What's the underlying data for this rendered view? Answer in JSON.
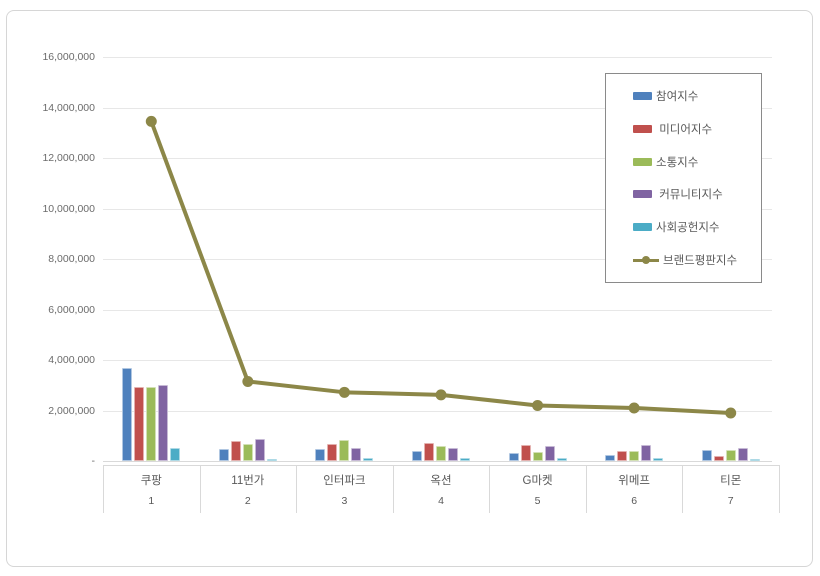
{
  "chart_data": {
    "type": "bar",
    "title": "",
    "categories": [
      "쿠팡",
      "11번가",
      "인터파크",
      "옥션",
      "G마켓",
      "위메프",
      "티몬"
    ],
    "category_numbers": [
      "1",
      "2",
      "3",
      "4",
      "5",
      "6",
      "7"
    ],
    "series": [
      {
        "name": "참여지수",
        "type": "bar",
        "color": "#4F81BD",
        "values": [
          3700000,
          460000,
          480000,
          400000,
          300000,
          250000,
          420000
        ]
      },
      {
        "name": " 미디어지수",
        "type": "bar",
        "color": "#C0504D",
        "values": [
          2950000,
          780000,
          660000,
          730000,
          640000,
          400000,
          200000
        ]
      },
      {
        "name": "소통지수",
        "type": "bar",
        "color": "#9BBB59",
        "values": [
          2950000,
          680000,
          820000,
          600000,
          360000,
          380000,
          440000
        ]
      },
      {
        "name": " 커뮤니티지수",
        "type": "bar",
        "color": "#8064A2",
        "values": [
          3000000,
          860000,
          500000,
          520000,
          600000,
          640000,
          520000
        ]
      },
      {
        "name": "사회공헌지수",
        "type": "bar",
        "color": "#4BACC6",
        "values": [
          520000,
          80000,
          130000,
          120000,
          120000,
          110000,
          90000
        ]
      },
      {
        "name": "브랜드평판지수",
        "type": "line",
        "color": "#8C8748",
        "values": [
          13450000,
          3150000,
          2720000,
          2620000,
          2200000,
          2100000,
          1900000
        ]
      }
    ],
    "y_axis": {
      "min": 0,
      "max": 16000000,
      "step": 2000000,
      "tick_labels": [
        "-",
        "2,000,000",
        "4,000,000",
        "6,000,000",
        "8,000,000",
        "10,000,000",
        "12,000,000",
        "14,000,000",
        "16,000,000"
      ]
    },
    "grid": true,
    "legend_position": "inside-top-right",
    "xlabel": "",
    "ylabel": ""
  }
}
